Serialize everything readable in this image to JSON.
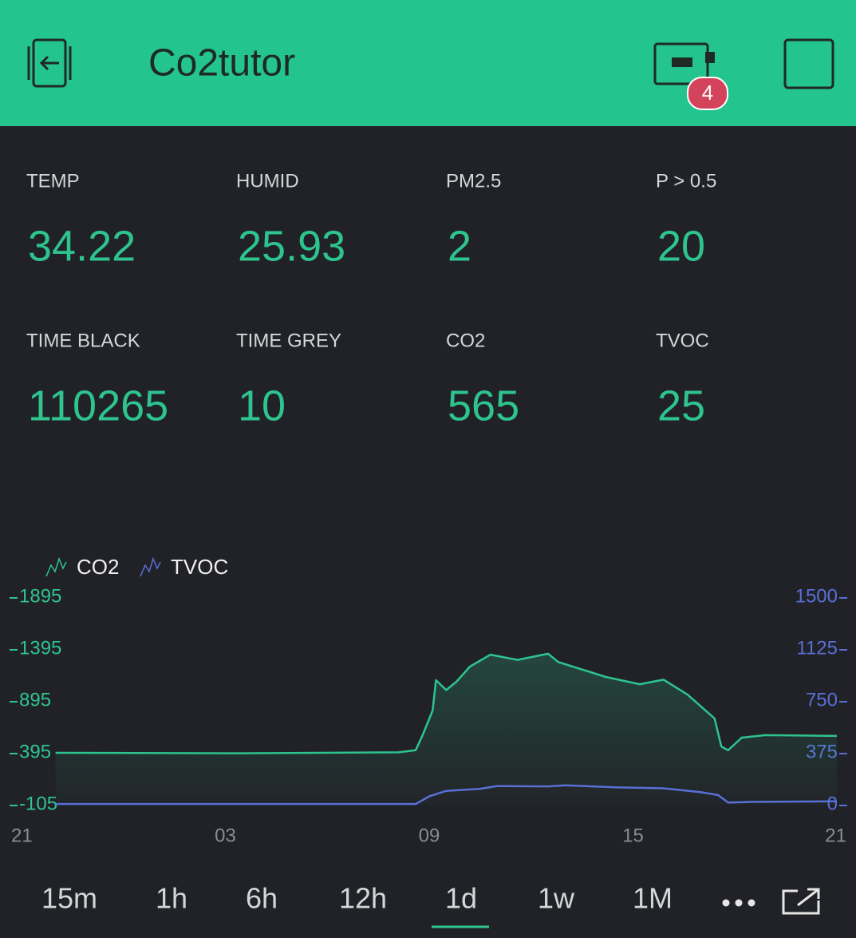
{
  "header": {
    "title": "Co2tutor",
    "badge": 4
  },
  "widgets": [
    {
      "label": "TEMP",
      "value": 34.22
    },
    {
      "label": "HUMID",
      "value": 25.93
    },
    {
      "label": "PM2.5",
      "value": 2
    },
    {
      "label": "P > 0.5",
      "value": 20
    },
    {
      "label": "TIME BLACK",
      "value": 110265
    },
    {
      "label": "TIME GREY",
      "value": 10
    },
    {
      "label": "CO2",
      "value": 565
    },
    {
      "label": "TVOC",
      "value": 25
    }
  ],
  "chart_data": {
    "type": "line",
    "series": [
      {
        "name": "CO2",
        "color": "#2ec48e",
        "x": [
          1.0,
          6.4,
          11.1,
          11.6,
          11.8,
          12.1,
          12.2,
          12.5,
          12.8,
          13.2,
          13.8,
          14.6,
          15.5,
          15.8,
          17.2,
          18.2,
          18.9,
          19.6,
          20.4,
          20.6,
          20.8,
          21.2,
          21.9,
          24
        ],
        "values": [
          395,
          390,
          400,
          420,
          560,
          803,
          1095,
          1000,
          1080,
          1226,
          1340,
          1290,
          1350,
          1270,
          1126,
          1056,
          1100,
          957,
          726,
          456,
          420,
          541,
          565,
          557
        ]
      },
      {
        "name": "TVOC",
        "color": "#5a6fd6",
        "axis": "y2",
        "x": [
          1.0,
          11.6,
          12.0,
          12.5,
          13.5,
          14.0,
          15.5,
          16.0,
          17.5,
          18.9,
          20.0,
          20.5,
          20.8,
          21.5,
          24
        ],
        "values": [
          5,
          5,
          60,
          100,
          115,
          135,
          132,
          140,
          125,
          118,
          90,
          70,
          15,
          20,
          25
        ]
      }
    ],
    "xlim": [
      0,
      24
    ],
    "xticks": [
      {
        "value": 0,
        "label": "21"
      },
      {
        "value": 6,
        "label": "03"
      },
      {
        "value": 12,
        "label": "09"
      },
      {
        "value": 18,
        "label": "15"
      },
      {
        "value": 24,
        "label": "21"
      }
    ],
    "ylim": [
      -105,
      1895
    ],
    "yticks": [
      -105,
      395,
      895,
      1395,
      1895
    ],
    "y2lim": [
      0,
      1500
    ],
    "y2ticks": [
      0,
      375,
      750,
      1125,
      1500
    ]
  },
  "time_ranges": [
    "15m",
    "1h",
    "6h",
    "12h",
    "1d",
    "1w",
    "1M"
  ]
}
